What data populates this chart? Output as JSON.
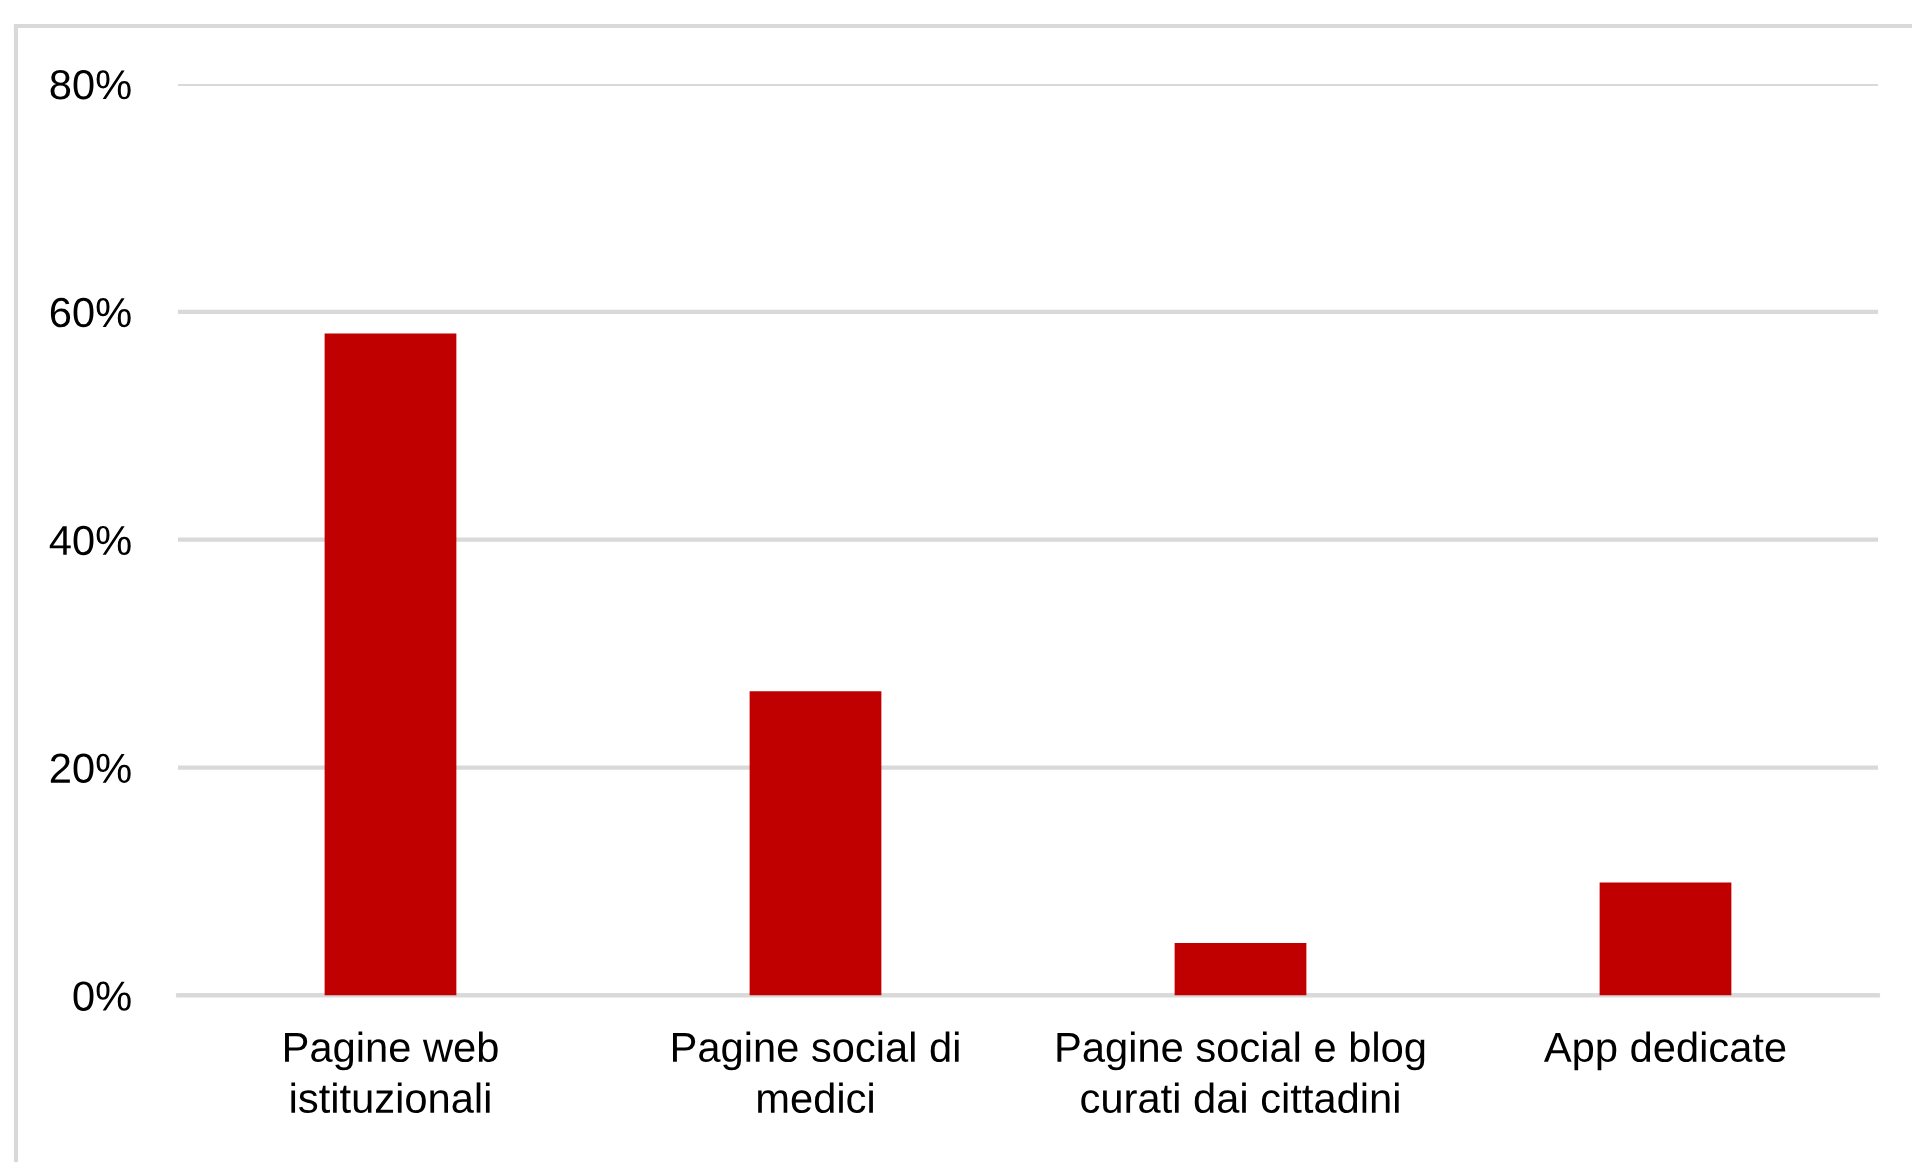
{
  "chart_data": {
    "type": "bar",
    "categories": [
      "Pagine web\nistituzionali",
      "Pagine social di\nmedici",
      "Pagine social e blog\ncurati dai cittadini",
      "App dedicate"
    ],
    "values": [
      58.1,
      26.7,
      4.6,
      9.9
    ],
    "color": "#c00000",
    "ylim": [
      0,
      80
    ],
    "yticks": [
      {
        "value": 0,
        "label": "0%"
      },
      {
        "value": 20,
        "label": "20%"
      },
      {
        "value": 40,
        "label": "40%"
      },
      {
        "value": 60,
        "label": "60%"
      },
      {
        "value": 80,
        "label": "80%"
      }
    ],
    "grid": "y"
  }
}
